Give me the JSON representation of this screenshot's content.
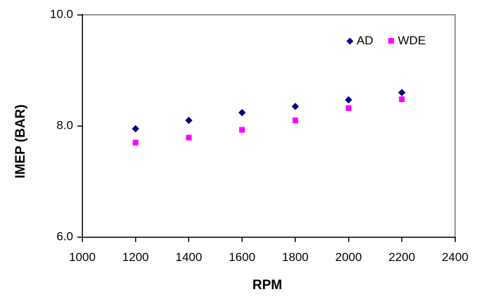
{
  "chart_data": {
    "type": "scatter",
    "title": "",
    "xlabel": "RPM",
    "ylabel": "IMEP (BAR)",
    "xlim": [
      1000,
      2400
    ],
    "ylim": [
      6.0,
      10.0
    ],
    "x_ticks": [
      1000,
      1200,
      1400,
      1600,
      1800,
      2000,
      2200,
      2400
    ],
    "x_tick_labels": [
      "1000",
      "1200",
      "1400",
      "1600",
      "1800",
      "2000",
      "2200",
      "2400"
    ],
    "y_ticks": [
      6.0,
      8.0,
      10.0
    ],
    "y_tick_labels": [
      "6.0",
      "8.0",
      "10.0"
    ],
    "grid": false,
    "legend_position": "top-right-inside",
    "x": [
      1200,
      1400,
      1600,
      1800,
      2000,
      2200
    ],
    "series": [
      {
        "name": "AD",
        "marker": "diamond",
        "color": "#000080",
        "values": [
          7.95,
          8.1,
          8.24,
          8.35,
          8.47,
          8.6
        ]
      },
      {
        "name": "WDE",
        "marker": "square",
        "color": "#FF00FF",
        "values": [
          7.7,
          7.79,
          7.93,
          8.1,
          8.32,
          8.48
        ]
      }
    ],
    "colors": {
      "axis": "#000000",
      "plot_border": "#969696",
      "background": "#FFFFFF",
      "text": "#000000"
    }
  }
}
